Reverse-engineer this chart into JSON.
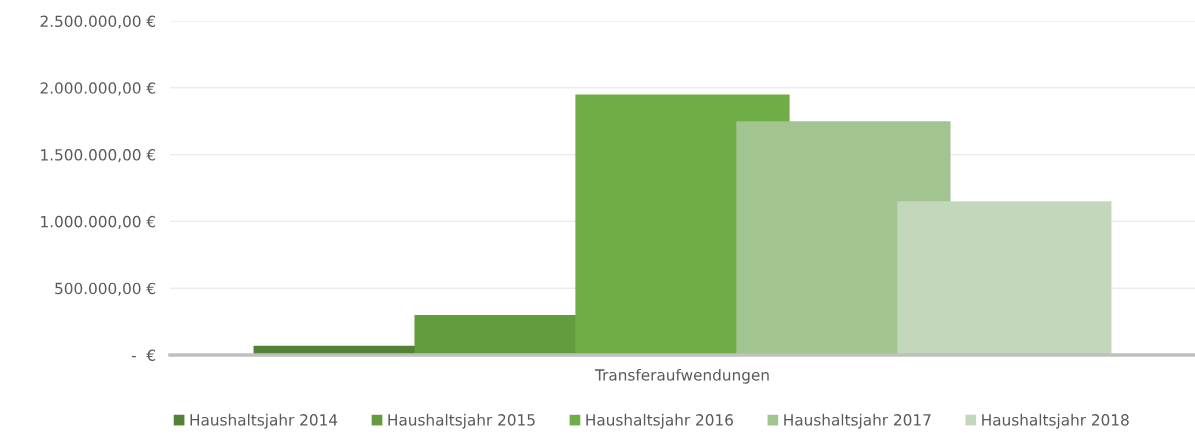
{
  "chart_data": {
    "type": "bar",
    "categories": [
      "Transferaufwendungen"
    ],
    "series": [
      {
        "name": "Haushaltsjahr 2014",
        "color": "#548235",
        "values": [
          70000
        ]
      },
      {
        "name": "Haushaltsjahr 2015",
        "color": "#629c3e",
        "values": [
          300000
        ]
      },
      {
        "name": "Haushaltsjahr 2016",
        "color": "#70ad47",
        "values": [
          1950000
        ]
      },
      {
        "name": "Haushaltsjahr 2017",
        "color": "#a2c490",
        "values": [
          1750000
        ]
      },
      {
        "name": "Haushaltsjahr 2018",
        "color": "#c3d7bb",
        "values": [
          1150000
        ]
      }
    ],
    "ylim": [
      0,
      2500000
    ],
    "yticks": [
      {
        "value": 0,
        "label": "-  €"
      },
      {
        "value": 500000,
        "label": "500.000,00 €"
      },
      {
        "value": 1000000,
        "label": "1.000.000,00 €"
      },
      {
        "value": 1500000,
        "label": "1.500.000,00 €"
      },
      {
        "value": 2000000,
        "label": "2.000.000,00 €"
      },
      {
        "value": 2500000,
        "label": "2.500.000,00 €"
      }
    ],
    "grid": "y",
    "legend": "bottom"
  }
}
